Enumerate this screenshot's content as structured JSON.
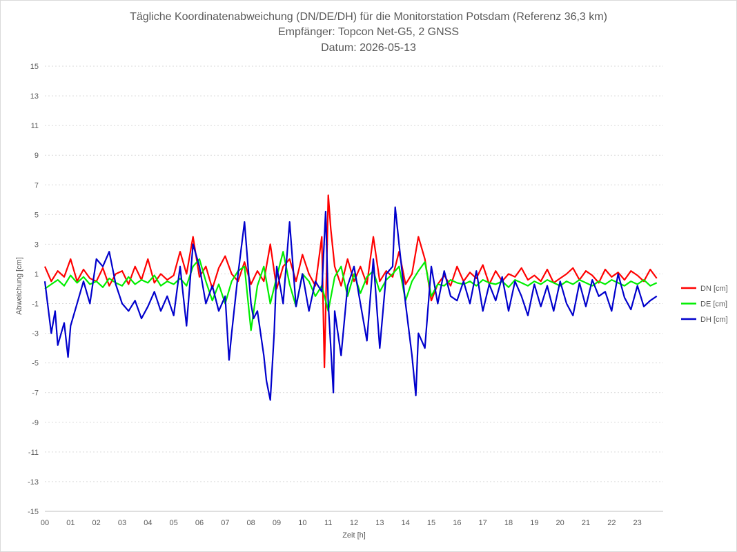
{
  "chart_data": {
    "type": "line",
    "title": "Tägliche Koordinatenabweichung (DN/DE/DH) für die Monitorstation Potsdam (Referenz 36,3 km)",
    "subtitle": "Empfänger: Topcon Net-G5, 2 GNSS",
    "date_line": "Datum: 2026-05-13",
    "xlabel": "Zeit [h]",
    "ylabel": "Abweichung [cm]",
    "xlim": [
      0,
      24
    ],
    "ylim": [
      -15,
      15
    ],
    "x_ticks": [
      "00",
      "01",
      "02",
      "03",
      "04",
      "05",
      "06",
      "07",
      "08",
      "09",
      "10",
      "11",
      "12",
      "13",
      "14",
      "15",
      "16",
      "17",
      "18",
      "19",
      "20",
      "21",
      "22",
      "23"
    ],
    "y_ticks": [
      15,
      13,
      11,
      9,
      7,
      5,
      3,
      1,
      -1,
      -3,
      -5,
      -7,
      -9,
      -11,
      -13,
      -15
    ],
    "y_gridlines": true,
    "legend_position": "right",
    "series": [
      {
        "name": "DN [cm]",
        "color": "#ff0000",
        "x": [
          0.0,
          0.25,
          0.5,
          0.75,
          1.0,
          1.25,
          1.5,
          1.75,
          2.0,
          2.25,
          2.5,
          2.75,
          3.0,
          3.25,
          3.5,
          3.75,
          4.0,
          4.25,
          4.5,
          4.75,
          5.0,
          5.25,
          5.5,
          5.75,
          6.0,
          6.25,
          6.5,
          6.75,
          7.0,
          7.25,
          7.5,
          7.75,
          8.0,
          8.25,
          8.5,
          8.75,
          9.0,
          9.25,
          9.5,
          9.75,
          10.0,
          10.25,
          10.5,
          10.75,
          10.85,
          11.0,
          11.1,
          11.25,
          11.5,
          11.75,
          12.0,
          12.25,
          12.5,
          12.75,
          13.0,
          13.25,
          13.5,
          13.75,
          14.0,
          14.25,
          14.5,
          14.75,
          15.0,
          15.25,
          15.5,
          15.75,
          16.0,
          16.25,
          16.5,
          16.75,
          17.0,
          17.25,
          17.5,
          17.75,
          18.0,
          18.25,
          18.5,
          18.75,
          19.0,
          19.25,
          19.5,
          19.75,
          20.0,
          20.25,
          20.5,
          20.75,
          21.0,
          21.25,
          21.5,
          21.75,
          22.0,
          22.25,
          22.5,
          22.75,
          23.0,
          23.25,
          23.5,
          23.75
        ],
        "values": [
          1.5,
          0.5,
          1.2,
          0.8,
          2.0,
          0.5,
          1.3,
          0.7,
          0.5,
          1.4,
          0.2,
          1.0,
          1.2,
          0.3,
          1.5,
          0.6,
          2.0,
          0.4,
          1.0,
          0.6,
          0.9,
          2.5,
          1.0,
          3.5,
          0.8,
          1.5,
          0.0,
          1.4,
          2.2,
          1.0,
          0.5,
          1.8,
          0.3,
          1.2,
          0.5,
          3.0,
          0.0,
          1.5,
          2.0,
          0.5,
          2.3,
          1.0,
          0.2,
          3.5,
          -5.3,
          6.3,
          4.0,
          1.5,
          0.2,
          2.0,
          0.5,
          1.5,
          0.3,
          3.5,
          0.5,
          1.2,
          0.8,
          2.5,
          0.3,
          1.0,
          3.5,
          2.0,
          -0.8,
          0.3,
          0.9,
          0.2,
          1.5,
          0.5,
          1.1,
          0.7,
          1.6,
          0.3,
          1.2,
          0.5,
          1.0,
          0.8,
          1.4,
          0.6,
          0.9,
          0.5,
          1.3,
          0.4,
          0.7,
          1.0,
          1.4,
          0.6,
          1.2,
          0.9,
          0.4,
          1.3,
          0.8,
          1.1,
          0.6,
          1.2,
          0.9,
          0.5,
          1.3,
          0.7
        ]
      },
      {
        "name": "DE [cm]",
        "color": "#00ee00",
        "x": [
          0.0,
          0.25,
          0.5,
          0.75,
          1.0,
          1.25,
          1.5,
          1.75,
          2.0,
          2.25,
          2.5,
          2.75,
          3.0,
          3.25,
          3.5,
          3.75,
          4.0,
          4.25,
          4.5,
          4.75,
          5.0,
          5.25,
          5.5,
          5.75,
          6.0,
          6.25,
          6.5,
          6.75,
          7.0,
          7.25,
          7.5,
          7.75,
          8.0,
          8.25,
          8.5,
          8.75,
          9.0,
          9.25,
          9.5,
          9.75,
          10.0,
          10.25,
          10.5,
          10.75,
          11.0,
          11.25,
          11.5,
          11.75,
          12.0,
          12.25,
          12.5,
          12.75,
          13.0,
          13.25,
          13.5,
          13.75,
          14.0,
          14.25,
          14.5,
          14.75,
          15.0,
          15.25,
          15.5,
          15.75,
          16.0,
          16.25,
          16.5,
          16.75,
          17.0,
          17.25,
          17.5,
          17.75,
          18.0,
          18.25,
          18.5,
          18.75,
          19.0,
          19.25,
          19.5,
          19.75,
          20.0,
          20.25,
          20.5,
          20.75,
          21.0,
          21.25,
          21.5,
          21.75,
          22.0,
          22.25,
          22.5,
          22.75,
          23.0,
          23.25,
          23.5,
          23.75
        ],
        "values": [
          0.0,
          0.3,
          0.6,
          0.2,
          0.9,
          0.4,
          0.8,
          0.3,
          0.5,
          0.1,
          0.7,
          0.4,
          0.2,
          0.8,
          0.3,
          0.6,
          0.4,
          0.9,
          0.2,
          0.5,
          0.3,
          0.7,
          0.2,
          1.5,
          2.0,
          0.5,
          -0.8,
          0.3,
          -1.0,
          0.5,
          1.2,
          1.5,
          -2.8,
          0.2,
          1.5,
          -1.0,
          0.8,
          2.5,
          0.3,
          -1.2,
          1.0,
          0.5,
          -0.5,
          0.2,
          -1.5,
          0.8,
          1.5,
          -0.5,
          1.0,
          -0.3,
          0.8,
          1.2,
          -0.2,
          0.6,
          1.0,
          1.5,
          -0.8,
          0.5,
          1.2,
          1.8,
          -0.5,
          0.3,
          0.2,
          0.6,
          0.4,
          0.3,
          0.5,
          0.2,
          0.6,
          0.4,
          0.3,
          0.5,
          0.1,
          0.6,
          0.4,
          0.2,
          0.5,
          0.3,
          0.6,
          0.4,
          0.2,
          0.5,
          0.3,
          0.6,
          0.4,
          0.2,
          0.5,
          0.3,
          0.6,
          0.4,
          0.2,
          0.5,
          0.3,
          0.6,
          0.2,
          0.4
        ]
      },
      {
        "name": "DH [cm]",
        "color": "#0000cc",
        "x": [
          0.0,
          0.25,
          0.4,
          0.5,
          0.75,
          0.9,
          1.0,
          1.25,
          1.5,
          1.75,
          2.0,
          2.25,
          2.5,
          2.75,
          3.0,
          3.25,
          3.5,
          3.75,
          4.0,
          4.25,
          4.5,
          4.75,
          5.0,
          5.25,
          5.5,
          5.75,
          6.0,
          6.25,
          6.5,
          6.75,
          7.0,
          7.15,
          7.25,
          7.5,
          7.75,
          8.0,
          8.1,
          8.25,
          8.5,
          8.6,
          8.75,
          8.9,
          9.0,
          9.25,
          9.5,
          9.75,
          10.0,
          10.25,
          10.5,
          10.75,
          10.9,
          11.0,
          11.2,
          11.25,
          11.5,
          11.75,
          12.0,
          12.25,
          12.5,
          12.75,
          13.0,
          13.25,
          13.5,
          13.6,
          13.75,
          14.0,
          14.25,
          14.4,
          14.5,
          14.75,
          15.0,
          15.25,
          15.5,
          15.75,
          16.0,
          16.25,
          16.5,
          16.75,
          17.0,
          17.25,
          17.5,
          17.75,
          18.0,
          18.25,
          18.5,
          18.75,
          19.0,
          19.25,
          19.5,
          19.75,
          20.0,
          20.25,
          20.5,
          20.75,
          21.0,
          21.25,
          21.5,
          21.75,
          22.0,
          22.25,
          22.5,
          22.75,
          23.0,
          23.25,
          23.5,
          23.75
        ],
        "values": [
          0.5,
          -3.0,
          -1.5,
          -3.8,
          -2.3,
          -4.6,
          -2.5,
          -1.0,
          0.5,
          -1.0,
          2.0,
          1.5,
          2.5,
          0.3,
          -1.0,
          -1.5,
          -0.8,
          -2.0,
          -1.2,
          -0.2,
          -1.5,
          -0.5,
          -1.8,
          1.5,
          -2.5,
          3.0,
          1.5,
          -1.0,
          0.2,
          -1.5,
          -0.5,
          -4.8,
          -3.0,
          1.0,
          4.5,
          -1.0,
          -2.0,
          -1.5,
          -4.5,
          -6.2,
          -7.5,
          -3.0,
          1.5,
          -1.0,
          4.5,
          -1.2,
          1.0,
          -1.5,
          0.5,
          -0.2,
          5.2,
          -1.0,
          -7.0,
          -1.5,
          -4.5,
          0.2,
          1.5,
          -1.0,
          -3.5,
          2.0,
          -4.0,
          1.0,
          1.5,
          5.5,
          3.0,
          -1.0,
          -4.5,
          -7.2,
          -3.0,
          -4.0,
          1.5,
          -1.0,
          1.2,
          -0.5,
          -0.8,
          0.5,
          -1.0,
          1.2,
          -1.5,
          0.3,
          -0.8,
          0.8,
          -1.5,
          0.5,
          -0.5,
          -1.8,
          0.3,
          -1.2,
          0.2,
          -1.5,
          0.5,
          -1.0,
          -1.8,
          0.4,
          -1.2,
          0.6,
          -0.5,
          -0.2,
          -1.5,
          1.0,
          -0.6,
          -1.4,
          0.2,
          -1.2,
          -0.8,
          -0.5
        ]
      }
    ]
  }
}
